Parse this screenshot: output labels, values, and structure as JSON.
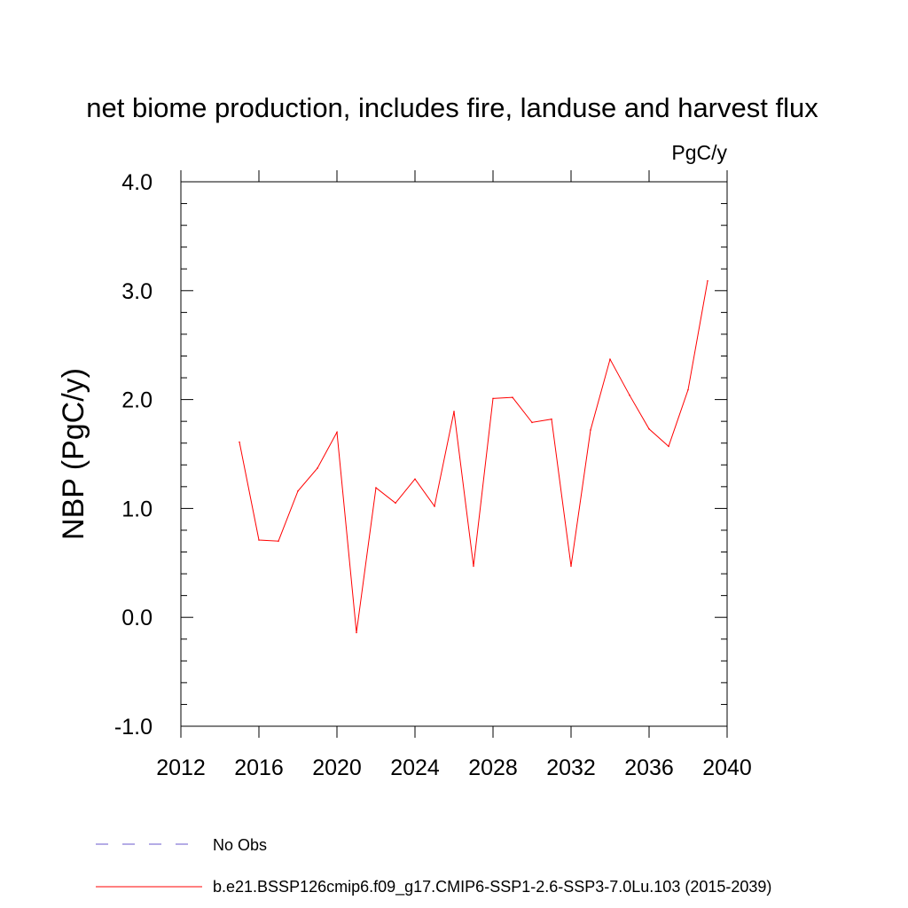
{
  "chart_data": {
    "type": "line",
    "title": "net biome production, includes fire, landuse and harvest flux",
    "units_label": "PgC/y",
    "ylabel": "NBP  (PgC/y)",
    "xlabel": "",
    "xlim": [
      2012,
      2040
    ],
    "ylim": [
      -1.0,
      4.0
    ],
    "x_ticks": [
      "2012",
      "2016",
      "2020",
      "2024",
      "2028",
      "2032",
      "2036",
      "2040"
    ],
    "y_ticks": [
      "-1.0",
      "0.0",
      "1.0",
      "2.0",
      "3.0",
      "4.0"
    ],
    "grid": false,
    "series": [
      {
        "name": "b.e21.BSSP126cmip6.f09_g17.CMIP6-SSP1-2.6-SSP3-7.0Lu.103 (2015-2039)",
        "color": "#ff0000",
        "x": [
          2015,
          2016,
          2017,
          2018,
          2019,
          2020,
          2021,
          2022,
          2023,
          2024,
          2025,
          2026,
          2027,
          2028,
          2029,
          2030,
          2031,
          2032,
          2033,
          2034,
          2035,
          2036,
          2037,
          2038,
          2039
        ],
        "values": [
          1.61,
          0.71,
          0.7,
          1.16,
          1.37,
          1.7,
          -0.14,
          1.19,
          1.05,
          1.27,
          1.02,
          1.89,
          0.47,
          2.01,
          2.02,
          1.79,
          1.82,
          0.47,
          1.72,
          2.37,
          2.04,
          1.73,
          1.57,
          2.09,
          3.09
        ]
      }
    ],
    "legend": [
      {
        "label": "No Obs",
        "style": "dashed",
        "color": "#6a5acd"
      },
      {
        "label": "b.e21.BSSP126cmip6.f09_g17.CMIP6-SSP1-2.6-SSP3-7.0Lu.103 (2015-2039)",
        "style": "solid",
        "color": "#ff0000"
      }
    ],
    "legend_position": "bottom"
  }
}
